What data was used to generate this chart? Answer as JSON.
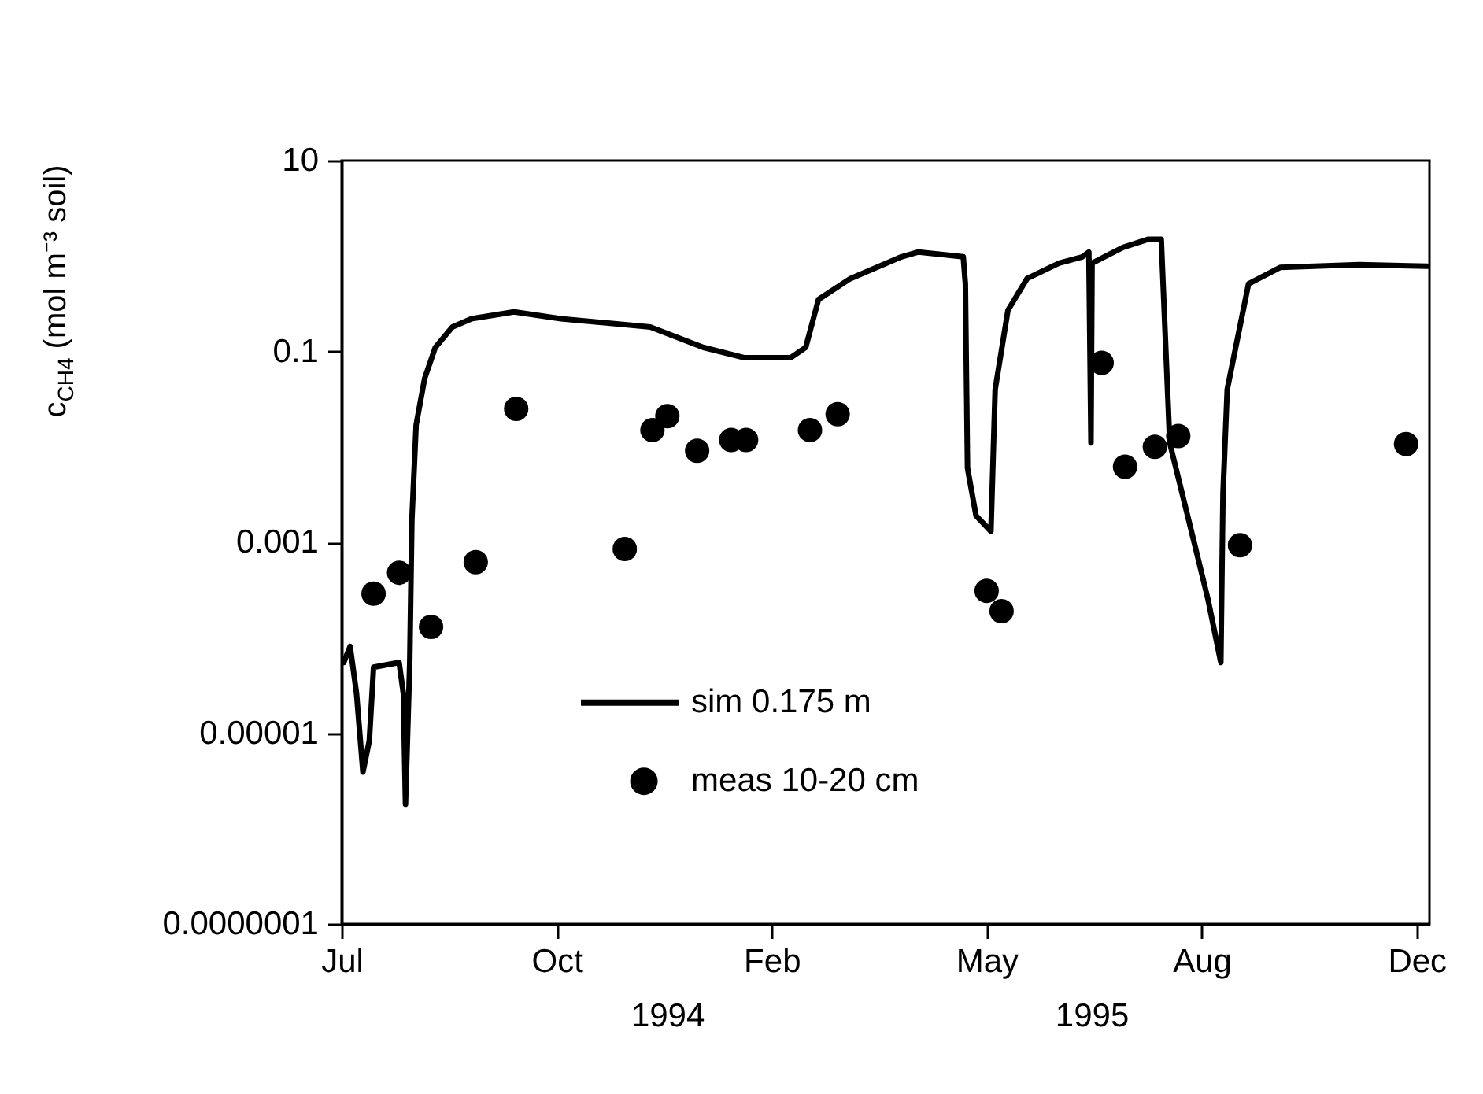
{
  "chart_data": {
    "type": "line",
    "ylabel": "c$_{CH4}$ (mol m⁻³ soil)",
    "log": "y",
    "legend": "bottom",
    "grid": false,
    "annotations": [
      "1994",
      "1995"
    ],
    "xlim": [
      "1994-07-16",
      "1995-12-09"
    ],
    "xticks": [
      {
        "value": "1994-07-16",
        "label": "Jul"
      },
      {
        "value": "1994-10-25",
        "label": "Oct"
      },
      {
        "value": "1995-02-03",
        "label": "Feb"
      },
      {
        "value": "1995-05-15",
        "label": "May"
      },
      {
        "value": "1995-08-24",
        "label": "Aug"
      },
      {
        "value": "1995-12-03",
        "label": "Dec"
      }
    ],
    "ylim": [
      1e-07,
      10
    ],
    "yticks": [
      {
        "value": 1e-07,
        "label": "0.0000001"
      },
      {
        "value": 1e-05,
        "label": "0.00001"
      },
      {
        "value": 0.001,
        "label": "0.001"
      },
      {
        "value": 0.1,
        "label": "0.1"
      },
      {
        "value": 10,
        "label": "10"
      }
    ],
    "series": [
      {
        "name": "sim 0.175 m",
        "type": "line",
        "color": "#000000",
        "x": [
          "1994-07-17",
          "1994-07-20",
          "1994-07-23",
          "1994-07-26",
          "1994-07-29",
          "1994-07-31",
          "1994-08-12",
          "1994-08-14",
          "1994-08-15",
          "1994-08-17",
          "1994-08-18",
          "1994-08-20",
          "1994-08-24",
          "1994-08-29",
          "1994-09-06",
          "1994-09-15",
          "1994-10-05",
          "1994-10-27",
          "1994-12-08",
          "1995-01-02",
          "1995-01-21",
          "1995-02-12",
          "1995-02-19",
          "1995-02-25",
          "1995-03-12",
          "1995-04-05",
          "1995-04-13",
          "1995-05-04",
          "1995-05-05",
          "1995-05-06",
          "1995-05-10",
          "1995-05-17",
          "1995-05-19",
          "1995-05-25",
          "1995-06-03",
          "1995-06-18",
          "1995-06-29",
          "1995-07-02",
          "1995-07-03",
          "1995-07-03T12:00",
          "1995-07-18",
          "1995-07-30",
          "1995-08-05",
          "1995-08-09",
          "1995-08-21",
          "1995-08-27",
          "1995-09-02",
          "1995-09-03",
          "1995-09-05",
          "1995-09-15",
          "1995-09-30",
          "1995-11-06",
          "1995-12-08"
        ],
        "values": [
          5.5e-05,
          8.1e-05,
          2.6e-05,
          3.9e-06,
          8.3e-06,
          4.9e-05,
          5.5e-05,
          2.6e-05,
          1.8e-06,
          5.5e-05,
          0.0017,
          0.017,
          0.052,
          0.11,
          0.18,
          0.22,
          0.26,
          0.22,
          0.18,
          0.11,
          0.086,
          0.086,
          0.11,
          0.35,
          0.58,
          0.98,
          1.1,
          0.98,
          0.51,
          0.006,
          0.0019,
          0.0013,
          0.04,
          0.27,
          0.58,
          0.84,
          0.98,
          1.1,
          0.011,
          0.84,
          1.23,
          1.5,
          1.5,
          0.011,
          0.00089,
          0.00025,
          5.5e-05,
          0.0032,
          0.04,
          0.51,
          0.76,
          0.81,
          0.78
        ]
      },
      {
        "name": "meas 10-20 cm",
        "type": "scatter",
        "color": "#000000",
        "marker": "circle",
        "x": [
          "1994-07-31",
          "1994-08-12",
          "1994-08-27",
          "1994-09-17",
          "1994-10-06",
          "1994-11-26",
          "1994-12-09",
          "1994-12-16",
          "1994-12-30",
          "1995-01-15",
          "1995-01-22",
          "1995-02-21",
          "1995-03-06",
          "1995-05-15",
          "1995-05-22",
          "1995-07-08",
          "1995-07-19",
          "1995-08-02",
          "1995-08-13",
          "1995-09-11",
          "1995-11-28"
        ],
        "values": [
          0.00029,
          0.00048,
          0.00013,
          0.00062,
          0.025,
          0.00085,
          0.015,
          0.021,
          0.0091,
          0.0118,
          0.0118,
          0.015,
          0.022,
          0.00031,
          0.00019,
          0.076,
          0.0062,
          0.01,
          0.013,
          0.00093,
          0.0107
        ]
      }
    ]
  }
}
